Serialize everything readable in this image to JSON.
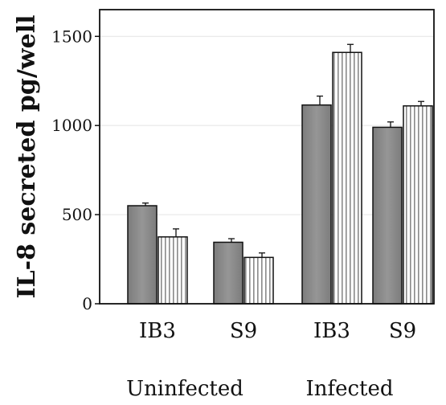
{
  "chart_data": {
    "type": "bar",
    "title": "",
    "xlabel": "",
    "ylabel": "IL-8 secreted pg/well",
    "ylim": [
      0,
      1650
    ],
    "yticks": [
      0,
      500,
      1000,
      1500
    ],
    "grid": "horizontal",
    "legend": "none",
    "categories": [
      "IB3",
      "S9",
      "IB3",
      "S9"
    ],
    "groups": [
      {
        "label": "Uninfected",
        "categories": [
          "IB3",
          "S9"
        ]
      },
      {
        "label": "Infected",
        "categories": [
          "IB3",
          "S9"
        ]
      }
    ],
    "series": [
      {
        "values": [
          550,
          345,
          1115,
          990
        ],
        "errors": [
          15,
          20,
          50,
          30
        ],
        "pattern": "solid-gray"
      },
      {
        "values": [
          375,
          260,
          1410,
          1110
        ],
        "errors": [
          45,
          25,
          45,
          25
        ],
        "pattern": "vertical-stripes"
      }
    ],
    "colors": {
      "series1": "#8a8a8a",
      "stripe": "#8a8a8a",
      "axis": "#111111",
      "grid": "#e4e4e4"
    }
  }
}
